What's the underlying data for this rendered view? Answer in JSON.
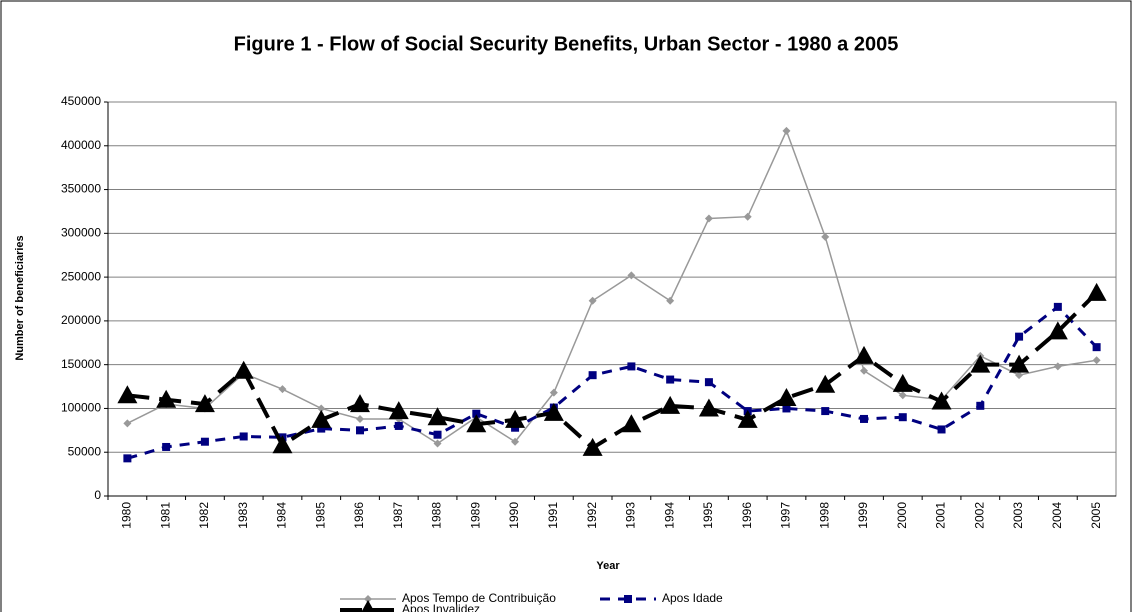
{
  "chart_data": {
    "type": "line",
    "title": "Figure 1 - Flow of Social Security Benefits, Urban Sector - 1980 a 2005",
    "x_label": "Year",
    "y_label": "Number of beneficiaries",
    "categories": [
      "1980",
      "1981",
      "1982",
      "1983",
      "1984",
      "1985",
      "1986",
      "1987",
      "1988",
      "1989",
      "1990",
      "1991",
      "1992",
      "1993",
      "1994",
      "1995",
      "1996",
      "1997",
      "1998",
      "1999",
      "2000",
      "2001",
      "2002",
      "2003",
      "2004",
      "2005"
    ],
    "series": [
      {
        "name": "Apos Tempo de Contribuição",
        "color": "#999999",
        "marker": "diamond",
        "dash": false,
        "values": [
          83000,
          105000,
          100000,
          140000,
          122000,
          100000,
          88000,
          88000,
          60000,
          90000,
          62000,
          118000,
          223000,
          252000,
          223000,
          317000,
          319000,
          417000,
          296000,
          143000,
          115000,
          110000,
          160000,
          138000,
          148000,
          155000
        ]
      },
      {
        "name": "Apos Idade",
        "color": "#000080",
        "marker": "square",
        "dash": true,
        "values": [
          43000,
          56000,
          62000,
          68000,
          67000,
          77000,
          75000,
          80000,
          70000,
          94000,
          78000,
          101000,
          138000,
          148000,
          133000,
          130000,
          97000,
          100000,
          97000,
          88000,
          90000,
          76000,
          103000,
          182000,
          216000,
          170000
        ]
      },
      {
        "name": "Apos Invalidez",
        "color": "#000000",
        "marker": "triangle",
        "dash": true,
        "values": [
          115000,
          110000,
          105000,
          143000,
          58000,
          87000,
          105000,
          97000,
          90000,
          82000,
          87000,
          95000,
          55000,
          82000,
          103000,
          100000,
          87000,
          112000,
          127000,
          160000,
          128000,
          108000,
          150000,
          150000,
          188000,
          232000
        ]
      }
    ],
    "ylim": [
      0,
      450000
    ],
    "yticks": [
      0,
      50000,
      100000,
      150000,
      200000,
      250000,
      300000,
      350000,
      400000,
      450000
    ],
    "grid": true
  }
}
